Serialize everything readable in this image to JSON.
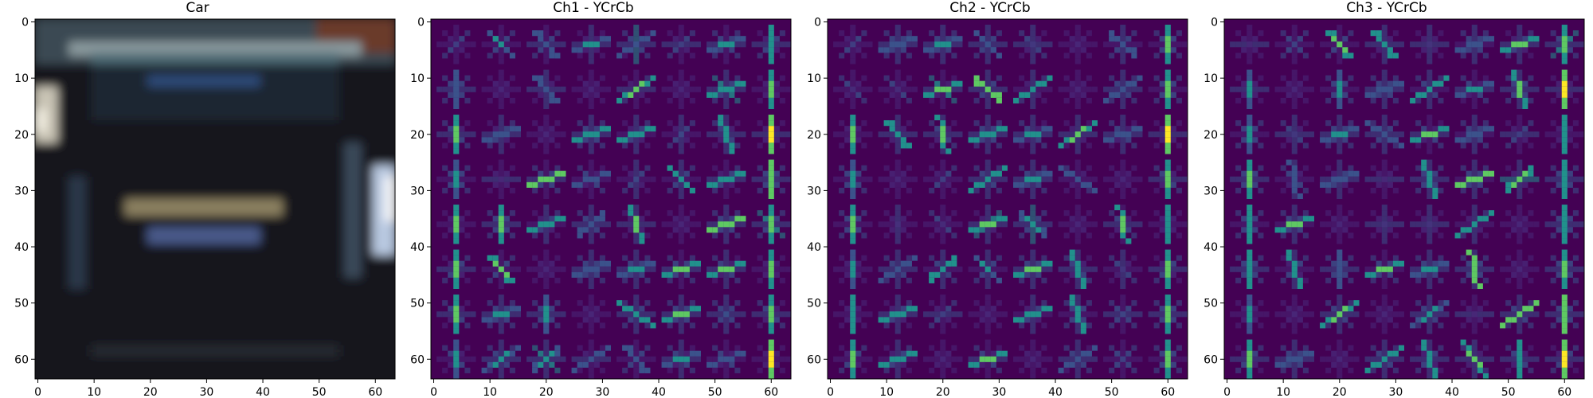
{
  "panels": [
    {
      "title": "Car",
      "kind": "photo"
    },
    {
      "title": "Ch1 - YCrCb",
      "kind": "hog",
      "seed": 11
    },
    {
      "title": "Ch2 - YCrCb",
      "kind": "hog",
      "seed": 23
    },
    {
      "title": "Ch3 - YCrCb",
      "kind": "hog",
      "seed": 37
    }
  ],
  "axes": {
    "x_ticks": [
      0,
      10,
      20,
      30,
      40,
      50,
      60
    ],
    "y_ticks": [
      0,
      10,
      20,
      30,
      40,
      50,
      60
    ],
    "range": [
      0,
      64
    ]
  },
  "colors": {
    "hog_background": "#440154",
    "hog_low": "#3b528b",
    "hog_mid": "#21918c",
    "hog_high": "#5ec962",
    "hog_peak": "#fde725"
  }
}
